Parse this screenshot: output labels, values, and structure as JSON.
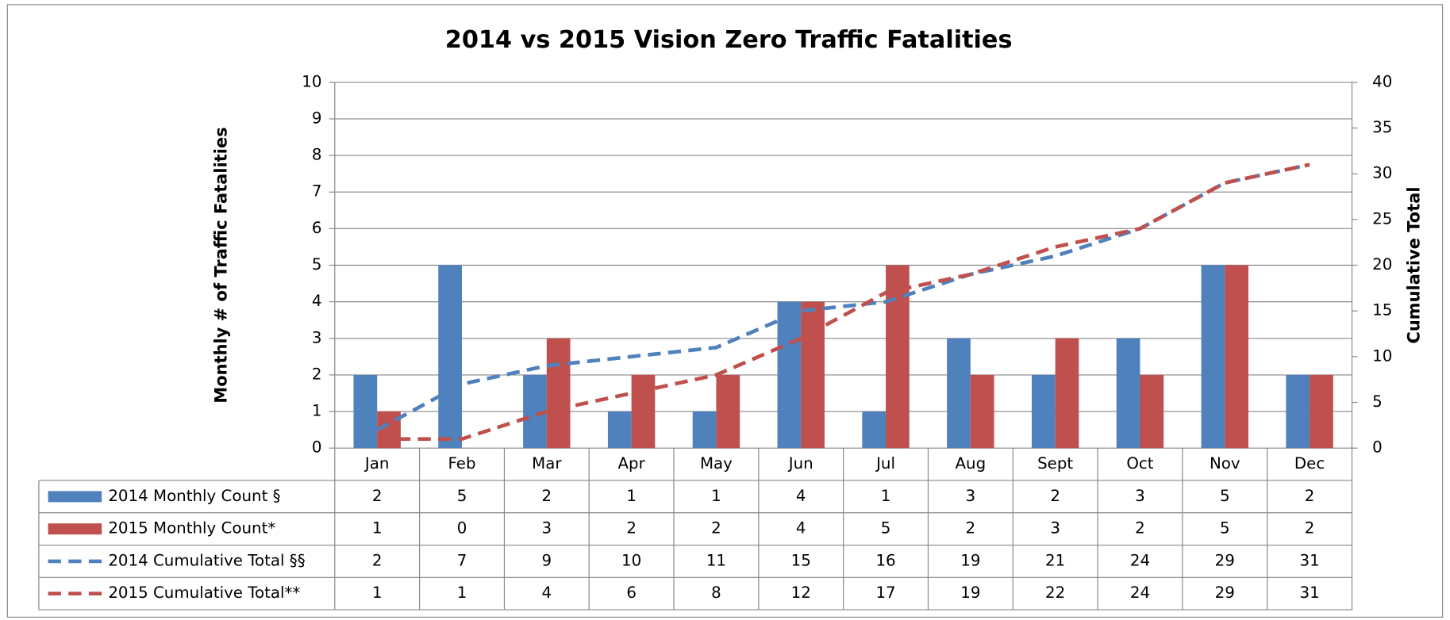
{
  "chart_data": {
    "type": "bar",
    "title": "2014 vs 2015 Vision Zero Traffic Fatalities",
    "y_label": "Monthly # of Traffic Fatalities",
    "y2_label": "Cumulative Total",
    "categories": [
      "Jan",
      "Feb",
      "Mar",
      "Apr",
      "May",
      "Jun",
      "Jul",
      "Aug",
      "Sept",
      "Oct",
      "Nov",
      "Dec"
    ],
    "ylim": [
      0,
      10
    ],
    "yticks": [
      0,
      1,
      2,
      3,
      4,
      5,
      6,
      7,
      8,
      9,
      10
    ],
    "y2lim": [
      0,
      40
    ],
    "y2ticks": [
      0,
      5,
      10,
      15,
      20,
      25,
      30,
      35,
      40
    ],
    "grid": true,
    "series": [
      {
        "name": "2014 Monthly Count §",
        "type": "bar",
        "color": "#4f81bd",
        "values": [
          2,
          5,
          2,
          1,
          1,
          4,
          1,
          3,
          2,
          3,
          5,
          2
        ]
      },
      {
        "name": "2015 Monthly Count*",
        "type": "bar",
        "color": "#c0504d",
        "values": [
          1,
          0,
          3,
          2,
          2,
          4,
          5,
          2,
          3,
          2,
          5,
          2
        ]
      },
      {
        "name": "2014 Cumulative Total §§",
        "type": "line",
        "axis": "y2",
        "color": "#4f81bd",
        "values": [
          2,
          7,
          9,
          10,
          11,
          15,
          16,
          19,
          21,
          24,
          29,
          31
        ]
      },
      {
        "name": "2015 Cumulative Total**",
        "type": "line",
        "axis": "y2",
        "color": "#c0504d",
        "values": [
          1,
          1,
          4,
          6,
          8,
          12,
          17,
          19,
          22,
          24,
          29,
          31
        ]
      }
    ]
  }
}
